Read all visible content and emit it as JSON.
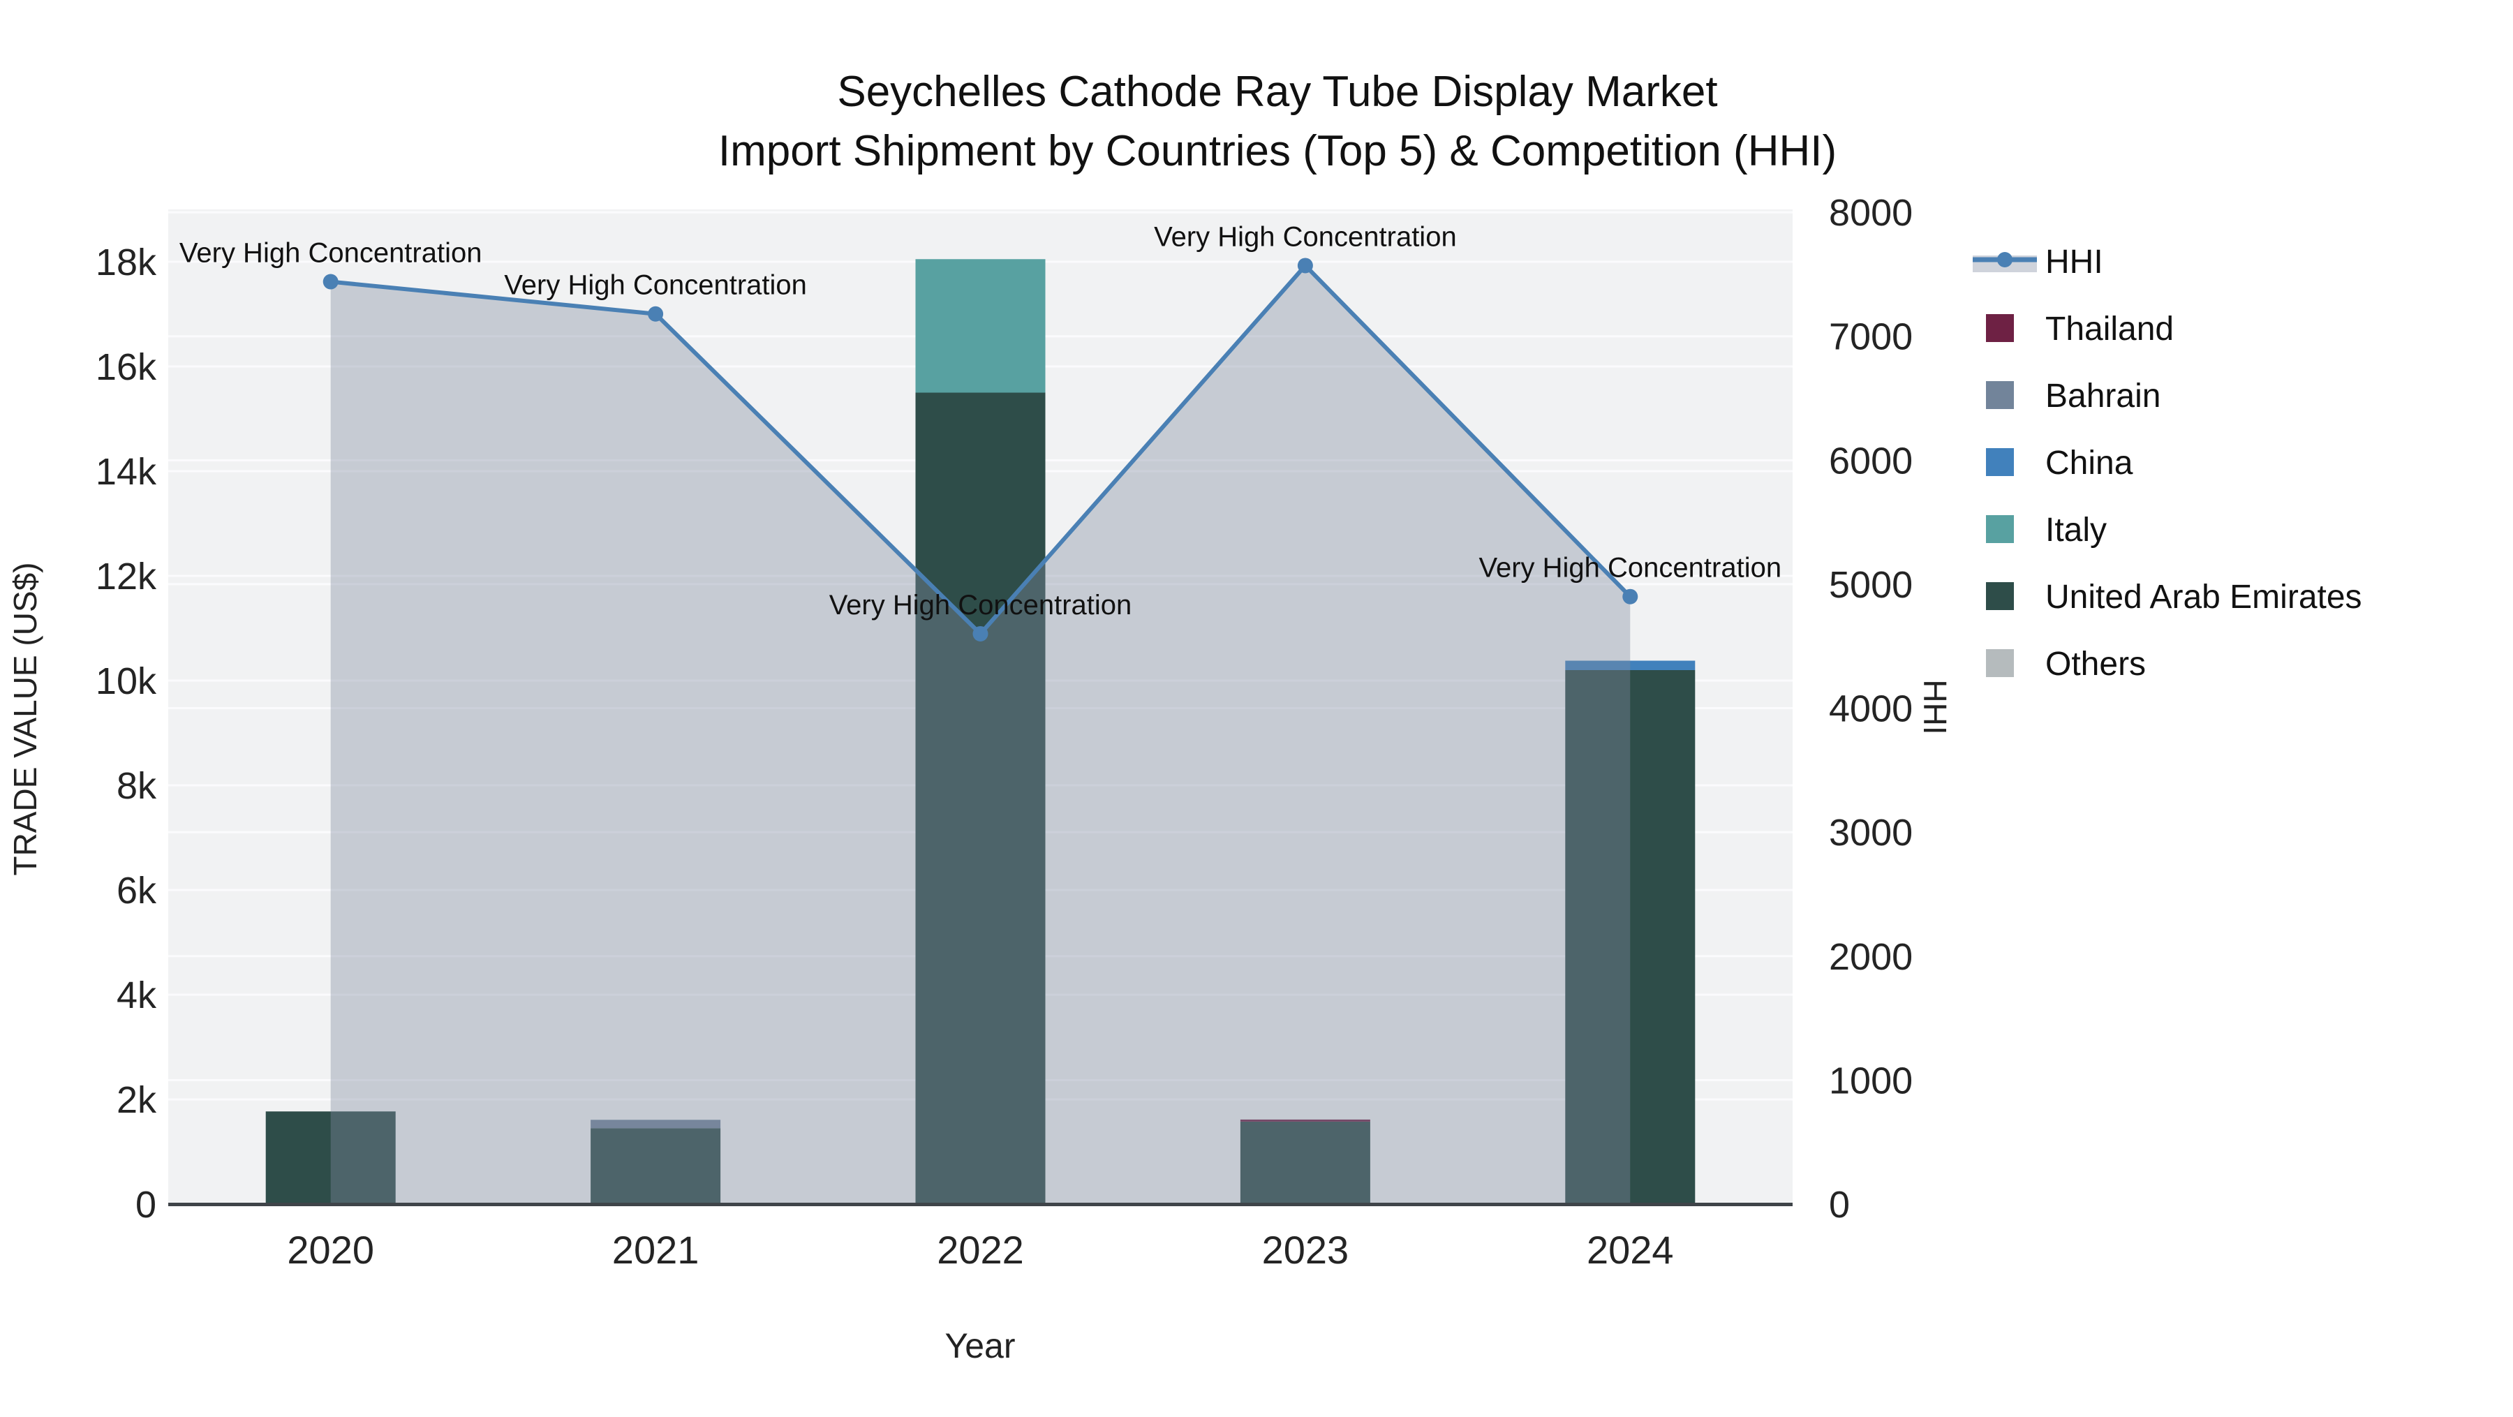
{
  "title": {
    "line1": "Seychelles Cathode Ray Tube Display Market",
    "line2": "Import Shipment by Countries (Top 5) & Competition (HHI)"
  },
  "axes": {
    "x": {
      "title": "Year",
      "categories": [
        "2020",
        "2021",
        "2022",
        "2023",
        "2024"
      ]
    },
    "y_left": {
      "title": "TRADE VALUE (US$)",
      "tick_values": [
        0,
        2000,
        4000,
        6000,
        8000,
        10000,
        12000,
        14000,
        16000,
        18000
      ],
      "tick_labels": [
        "0",
        "2k",
        "4k",
        "6k",
        "8k",
        "10k",
        "12k",
        "14k",
        "16k",
        "18k"
      ],
      "range": [
        0,
        19000
      ]
    },
    "y_right": {
      "title": "HHI",
      "tick_values": [
        0,
        1000,
        2000,
        3000,
        4000,
        5000,
        6000,
        7000,
        8000
      ],
      "tick_labels": [
        "0",
        "1000",
        "2000",
        "3000",
        "4000",
        "5000",
        "6000",
        "7000",
        "8000"
      ],
      "range": [
        0,
        8023
      ]
    }
  },
  "colors": {
    "plot_bg": "#f1f2f3",
    "grid": "#fbfbfd",
    "axis_line": "#3f4449",
    "hhi_line": "#4a80b4",
    "hhi_area_fill": "rgba(130,140,160,0.38)"
  },
  "chart_data": {
    "type": "bar+line",
    "x": [
      "2020",
      "2021",
      "2022",
      "2023",
      "2024"
    ],
    "bar_value_unit": "US$",
    "series": [
      {
        "name": "Thailand",
        "color": "#6e2144",
        "values": [
          0,
          0,
          0,
          40,
          0
        ]
      },
      {
        "name": "Bahrain",
        "color": "#72849a",
        "values": [
          0,
          160,
          0,
          0,
          0
        ]
      },
      {
        "name": "China",
        "color": "#4181bc",
        "values": [
          0,
          0,
          0,
          0,
          180
        ]
      },
      {
        "name": "Italy",
        "color": "#58a1a1",
        "values": [
          0,
          0,
          2550,
          0,
          0
        ]
      },
      {
        "name": "United Arab Emirates",
        "color": "#2e4d49",
        "values": [
          1770,
          1450,
          15500,
          1575,
          10200
        ]
      },
      {
        "name": "Others",
        "color": "#b5bbbd",
        "values": [
          0,
          0,
          0,
          0,
          0
        ]
      }
    ],
    "stack_order": [
      "United Arab Emirates",
      "Thailand",
      "Bahrain",
      "China",
      "Italy",
      "Others"
    ],
    "line": {
      "name": "HHI",
      "axis": "right",
      "color": "#4a80b4",
      "area_fill": "rgba(130,140,160,0.38)",
      "values": [
        7440,
        7180,
        4600,
        7570,
        4900
      ]
    },
    "annotations": [
      {
        "x": "2020",
        "text": "Very High Concentration"
      },
      {
        "x": "2021",
        "text": "Very High Concentration"
      },
      {
        "x": "2022",
        "text": "Very High Concentration"
      },
      {
        "x": "2023",
        "text": "Very High Concentration"
      },
      {
        "x": "2024",
        "text": "Very High Concentration"
      }
    ],
    "legend_order": [
      "HHI",
      "Thailand",
      "Bahrain",
      "China",
      "Italy",
      "United Arab Emirates",
      "Others"
    ],
    "xlabel": "Year",
    "ylabel_left": "TRADE VALUE (US$)",
    "ylabel_right": "HHI",
    "ylim_left": [
      0,
      19000
    ],
    "ylim_right": [
      0,
      8023
    ],
    "grid": true,
    "legend_position": "right"
  }
}
